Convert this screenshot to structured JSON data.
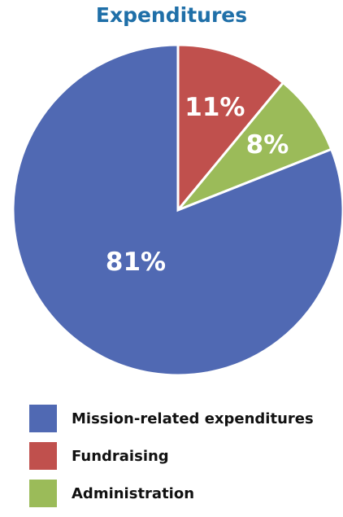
{
  "chart_data": {
    "type": "pie",
    "title": "Expenditures",
    "categories": [
      "Mission-related expenditures",
      "Fundraising",
      "Administration"
    ],
    "values": [
      81,
      11,
      8
    ],
    "labels": [
      "81%",
      "11%",
      "8%"
    ],
    "colors": [
      "#5069b3",
      "#c0504d",
      "#9bbb59"
    ],
    "start": "12 o'clock",
    "direction": "clockwise",
    "legend_position": "bottom"
  }
}
